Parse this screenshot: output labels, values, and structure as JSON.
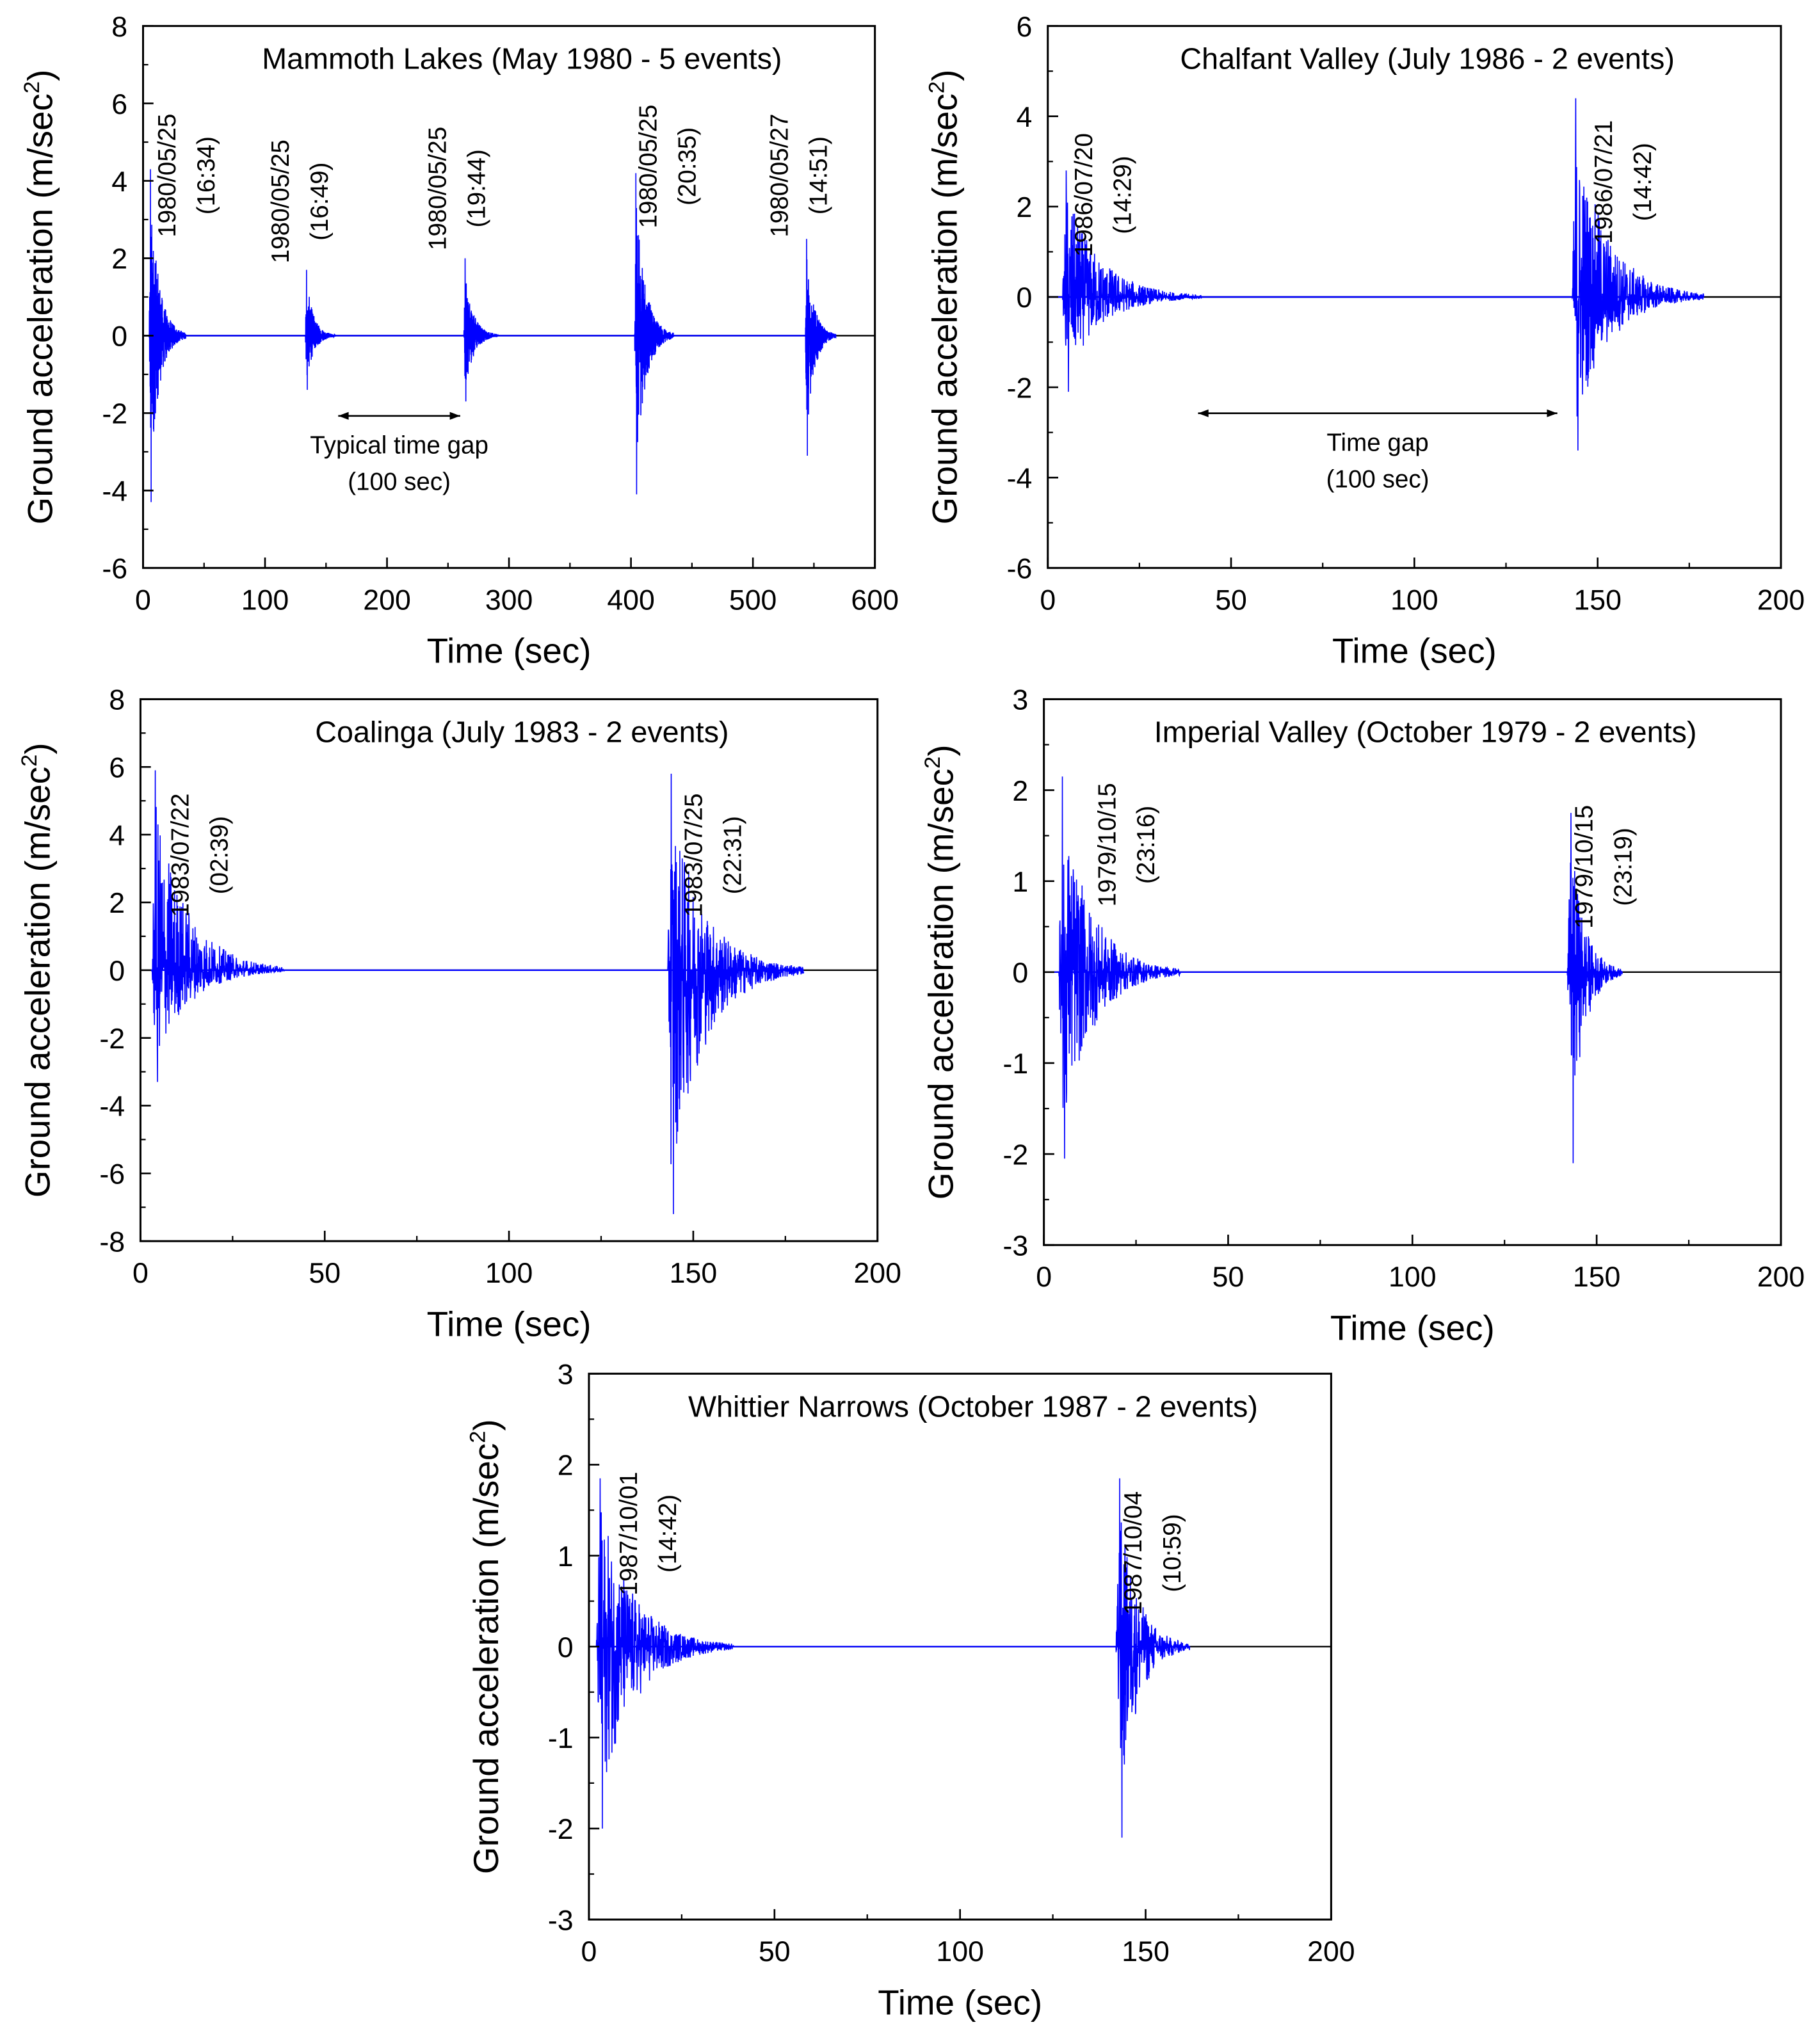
{
  "chart_data": [
    {
      "type": "line",
      "title": "Mammoth Lakes (May 1980 - 5 events)",
      "xlabel": "Time (sec)",
      "ylabel": "Ground acceleration (m/sec",
      "ylabel_sup": "2",
      "ylabel_end": ")",
      "xlim": [
        0,
        600
      ],
      "ylim": [
        -6,
        8
      ],
      "xticks": [
        0,
        100,
        200,
        300,
        400,
        500,
        600
      ],
      "yticks": [
        -6,
        -4,
        -2,
        0,
        2,
        4,
        6,
        8
      ],
      "series_color": "#0000ff",
      "events": [
        {
          "time": 5,
          "date": "1980/05/25",
          "clock": "(16:34)",
          "peak_pos": 4.3,
          "peak_neg": -4.3,
          "duration": 30
        },
        {
          "time": 133,
          "date": "1980/05/25",
          "clock": "(16:49)",
          "peak_pos": 1.7,
          "peak_neg": -1.4,
          "duration": 25
        },
        {
          "time": 263,
          "date": "1980/05/25",
          "clock": "(19:44)",
          "peak_pos": 2.0,
          "peak_neg": -1.7,
          "duration": 28
        },
        {
          "time": 403,
          "date": "1980/05/25",
          "clock": "(20:35)",
          "peak_pos": 4.2,
          "peak_neg": -4.1,
          "duration": 32
        },
        {
          "time": 543,
          "date": "1980/05/27",
          "clock": "(14:51)",
          "peak_pos": 2.5,
          "peak_neg": -3.1,
          "duration": 25
        }
      ],
      "annotation": {
        "lines": [
          "Typical time gap",
          "(100 sec)"
        ],
        "from": 160,
        "to": 260,
        "y": -2.1
      }
    },
    {
      "type": "line",
      "title": "Chalfant Valley (July 1986 - 2 events)",
      "xlabel": "Time (sec)",
      "ylabel": "Ground acceleration (m/sec",
      "ylabel_sup": "2",
      "ylabel_end": ")",
      "xlim": [
        0,
        200
      ],
      "ylim": [
        -6,
        6
      ],
      "xticks": [
        0,
        50,
        100,
        150,
        200
      ],
      "yticks": [
        -6,
        -4,
        -2,
        0,
        2,
        4,
        6
      ],
      "series_color": "#0000ff",
      "events": [
        {
          "time": 4,
          "date": "1986/07/20",
          "clock": "(14:29)",
          "peak_pos": 2.8,
          "peak_neg": -2.1,
          "duration": 38
        },
        {
          "time": 143,
          "date": "1986/07/21",
          "clock": "(14:42)",
          "peak_pos": 4.4,
          "peak_neg": -3.4,
          "duration": 36
        }
      ],
      "annotation": {
        "lines": [
          "Time gap",
          "(100 sec)"
        ],
        "from": 41,
        "to": 139,
        "y": -2.6
      }
    },
    {
      "type": "line",
      "title": "Coalinga (July 1983 - 2 events)",
      "xlabel": "Time (sec)",
      "ylabel": "Ground acceleration (m/sec",
      "ylabel_sup": "2",
      "ylabel_end": ")",
      "xlim": [
        0,
        200
      ],
      "ylim": [
        -8,
        8
      ],
      "xticks": [
        0,
        50,
        100,
        150,
        200
      ],
      "yticks": [
        -8,
        -6,
        -4,
        -2,
        0,
        2,
        4,
        6,
        8
      ],
      "series_color": "#0000ff",
      "events": [
        {
          "time": 3,
          "date": "1983/07/22",
          "clock": "(02:39)",
          "peak_pos": 5.9,
          "peak_neg": -3.3,
          "duration": 36
        },
        {
          "time": 143,
          "date": "1983/07/25",
          "clock": "(22:31)",
          "peak_pos": 5.8,
          "peak_neg": -7.2,
          "duration": 37
        }
      ]
    },
    {
      "type": "line",
      "title": "Imperial Valley (October 1979 - 2 events)",
      "xlabel": "Time (sec)",
      "ylabel": "Ground acceleration (m/sec",
      "ylabel_sup": "2",
      "ylabel_end": ")",
      "xlim": [
        0,
        200
      ],
      "ylim": [
        -3,
        3
      ],
      "xticks": [
        0,
        50,
        100,
        150,
        200
      ],
      "yticks": [
        -3,
        -2,
        -1,
        0,
        1,
        2,
        3
      ],
      "series_color": "#0000ff",
      "events": [
        {
          "time": 4,
          "date": "1979/10/15",
          "clock": "(23:16)",
          "peak_pos": 2.15,
          "peak_neg": -2.05,
          "duration": 33
        },
        {
          "time": 142,
          "date": "1979/10/15",
          "clock": "(23:19)",
          "peak_pos": 1.75,
          "peak_neg": -2.1,
          "duration": 15
        }
      ]
    },
    {
      "type": "line",
      "title": "Whittier Narrows (October 1987 - 2 events)",
      "xlabel": "Time (sec)",
      "ylabel": "Ground acceleration (m/sec",
      "ylabel_sup": "2",
      "ylabel_end": ")",
      "xlim": [
        0,
        200
      ],
      "ylim": [
        -3,
        3
      ],
      "xticks": [
        0,
        50,
        100,
        150,
        200
      ],
      "yticks": [
        -3,
        -2,
        -1,
        0,
        1,
        2,
        3
      ],
      "series_color": "#0000ff",
      "events": [
        {
          "time": 2,
          "date": "1987/10/01",
          "clock": "(14:42)",
          "peak_pos": 1.85,
          "peak_neg": -2.0,
          "duration": 37
        },
        {
          "time": 142,
          "date": "1987/10/04",
          "clock": "(10:59)",
          "peak_pos": 1.85,
          "peak_neg": -2.1,
          "duration": 20
        }
      ]
    }
  ]
}
